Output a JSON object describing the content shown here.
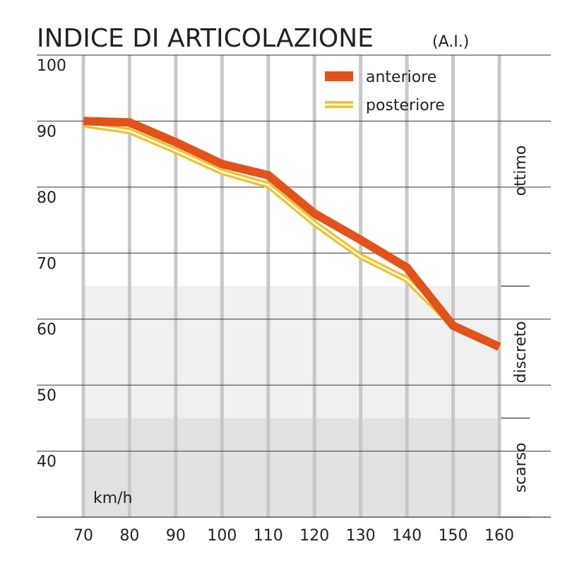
{
  "chart_data": {
    "type": "line",
    "title": "INDICE DI ARTICOLAZIONE",
    "subtitle": "(A.I.)",
    "x_label": "km/h",
    "x": [
      70,
      80,
      90,
      100,
      110,
      120,
      130,
      140,
      150,
      160
    ],
    "xlim": [
      70,
      160
    ],
    "xticks": [
      70,
      80,
      90,
      100,
      110,
      120,
      130,
      140,
      150,
      160
    ],
    "ylim": [
      30,
      100
    ],
    "yticks": [
      40,
      50,
      60,
      70,
      80,
      90,
      100
    ],
    "grid": true,
    "legend": "top-right",
    "bands": [
      {
        "label": "ottimo",
        "from": 65,
        "to": 100,
        "color": "#ffffff"
      },
      {
        "label": "discreto",
        "from": 45,
        "to": 65,
        "color": "#f0f0f0"
      },
      {
        "label": "scarso",
        "from": 30,
        "to": 45,
        "color": "#e2e2e2"
      }
    ],
    "series": [
      {
        "name": "posteriore",
        "color": "#f2c12e",
        "values": [
          89.5,
          88.5,
          85.5,
          82.3,
          80.3,
          74.5,
          69.5,
          66,
          59,
          56
        ]
      },
      {
        "name": "anteriore",
        "color": "#e2521a",
        "values": [
          90,
          89.8,
          86.8,
          83.5,
          81.8,
          76,
          72,
          67.8,
          59,
          55.8
        ]
      }
    ]
  }
}
